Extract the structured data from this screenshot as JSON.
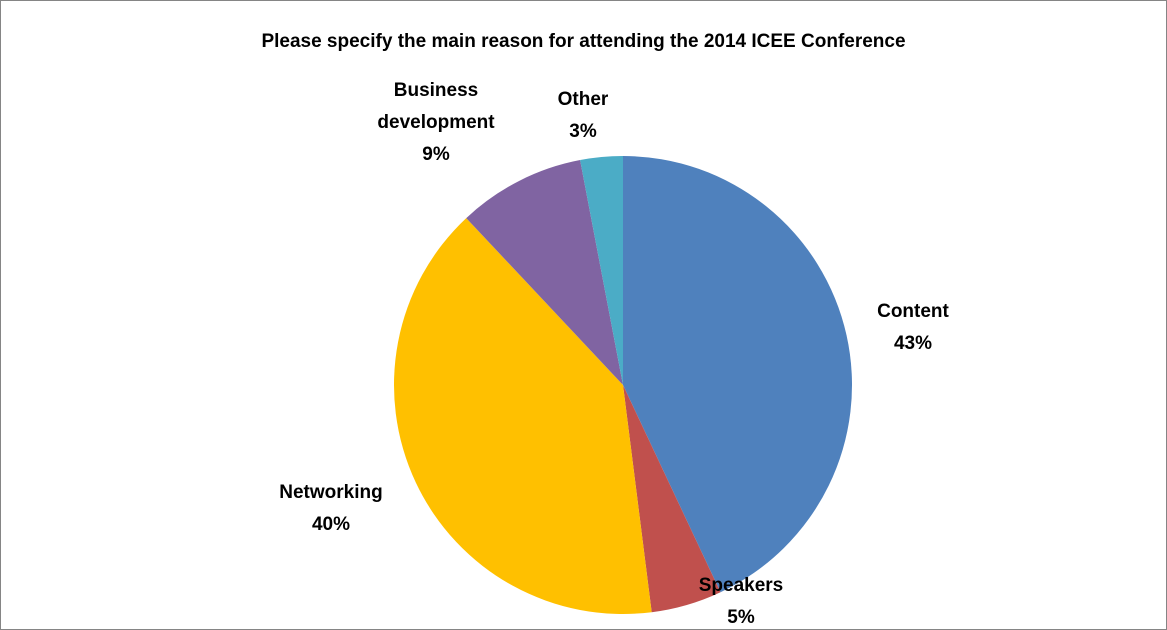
{
  "chart_data": {
    "type": "pie",
    "title": "Please specify the main reason for attending the 2014 ICEE Conference",
    "slices": [
      {
        "label": "Content",
        "label_lines": [
          "Content"
        ],
        "value": 43,
        "value_label": "43%",
        "color": "#4f81bd"
      },
      {
        "label": "Speakers",
        "label_lines": [
          "Speakers"
        ],
        "value": 5,
        "value_label": "5%",
        "color": "#c0504d"
      },
      {
        "label": "Networking",
        "label_lines": [
          "Networking"
        ],
        "value": 40,
        "value_label": "40%",
        "color": "#ffc000"
      },
      {
        "label": "Business development",
        "label_lines": [
          "Business",
          "development"
        ],
        "value": 9,
        "value_label": "9%",
        "color": "#8064a2"
      },
      {
        "label": "Other",
        "label_lines": [
          "Other"
        ],
        "value": 3,
        "value_label": "3%",
        "color": "#4bacc6"
      }
    ],
    "start_angle": "12 o'clock",
    "direction": "clockwise",
    "legend": "none",
    "labels": "outside"
  }
}
